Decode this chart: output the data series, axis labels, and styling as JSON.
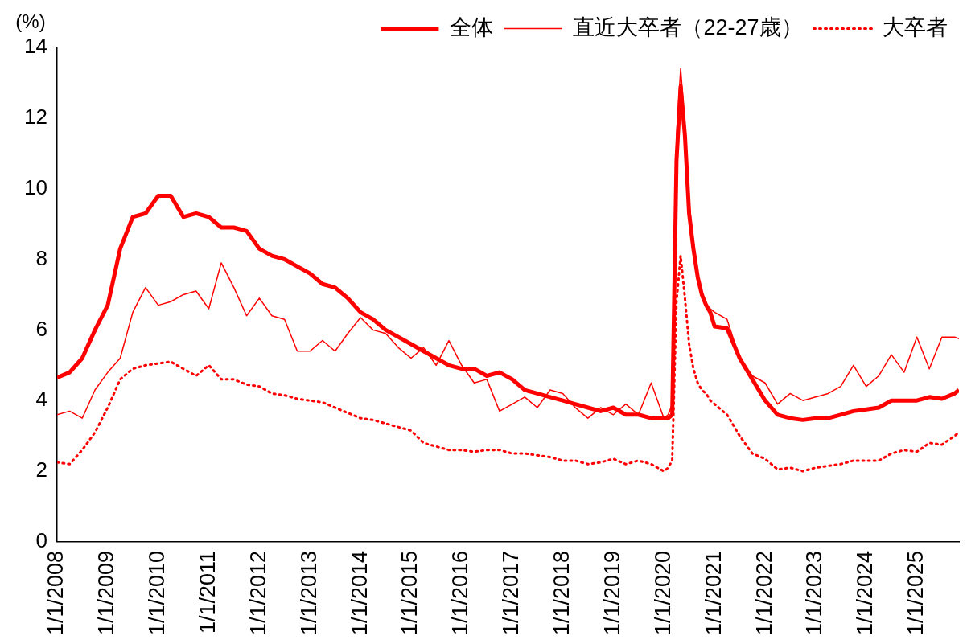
{
  "chart_data": {
    "type": "line",
    "ylabel": "(%)",
    "legend": "top",
    "grid": false,
    "marker": "none",
    "x": [
      "2008-01",
      "2008-04",
      "2008-07",
      "2008-10",
      "2009-01",
      "2009-04",
      "2009-07",
      "2009-10",
      "2010-01",
      "2010-04",
      "2010-07",
      "2010-10",
      "2011-01",
      "2011-04",
      "2011-07",
      "2011-10",
      "2012-01",
      "2012-04",
      "2012-07",
      "2012-10",
      "2013-01",
      "2013-04",
      "2013-07",
      "2013-10",
      "2014-01",
      "2014-04",
      "2014-07",
      "2014-10",
      "2015-01",
      "2015-04",
      "2015-07",
      "2015-10",
      "2016-01",
      "2016-04",
      "2016-07",
      "2016-10",
      "2017-01",
      "2017-04",
      "2017-07",
      "2017-10",
      "2018-01",
      "2018-04",
      "2018-07",
      "2018-10",
      "2019-01",
      "2019-04",
      "2019-07",
      "2019-10",
      "2020-01",
      "2020-02",
      "2020-03",
      "2020-04",
      "2020-05",
      "2020-06",
      "2020-07",
      "2020-08",
      "2020-09",
      "2020-10",
      "2020-11",
      "2020-12",
      "2021-01",
      "2021-04",
      "2021-07",
      "2021-10",
      "2022-01",
      "2022-04",
      "2022-07",
      "2022-10",
      "2023-01",
      "2023-04",
      "2023-07",
      "2023-10",
      "2024-01",
      "2024-04",
      "2024-07",
      "2024-10",
      "2025-01",
      "2025-04",
      "2025-07",
      "2025-10",
      "2025-11"
    ],
    "series": [
      {
        "name": "全体",
        "color": "#ff0000",
        "line_style": "solid",
        "values": [
          4.65,
          4.8,
          5.2,
          6.0,
          6.7,
          8.3,
          9.2,
          9.3,
          9.8,
          9.8,
          9.2,
          9.3,
          9.2,
          8.9,
          8.9,
          8.8,
          8.3,
          8.1,
          8.0,
          7.8,
          7.6,
          7.3,
          7.2,
          6.9,
          6.5,
          6.3,
          6.0,
          5.8,
          5.6,
          5.4,
          5.2,
          5.0,
          4.9,
          4.9,
          4.7,
          4.8,
          4.6,
          4.3,
          4.2,
          4.1,
          4.0,
          3.9,
          3.8,
          3.7,
          3.8,
          3.6,
          3.6,
          3.5,
          3.5,
          3.5,
          3.6,
          10.8,
          12.9,
          11.5,
          9.3,
          8.3,
          7.5,
          7.0,
          6.7,
          6.5,
          6.1,
          6.05,
          5.2,
          4.6,
          4.0,
          3.6,
          3.5,
          3.45,
          3.5,
          3.5,
          3.6,
          3.7,
          3.75,
          3.8,
          4.0,
          4.0,
          4.0,
          4.1,
          4.05,
          4.2,
          4.3
        ]
      },
      {
        "name": "直近大卒者（22-27歳）",
        "color": "#ff0000",
        "line_style": "solid",
        "values": [
          3.6,
          3.7,
          3.5,
          4.3,
          4.8,
          5.2,
          6.5,
          7.2,
          6.7,
          6.8,
          7.0,
          7.1,
          6.6,
          7.9,
          7.2,
          6.4,
          6.9,
          6.4,
          6.3,
          5.4,
          5.4,
          5.7,
          5.4,
          5.9,
          6.35,
          6.0,
          5.9,
          5.5,
          5.2,
          5.5,
          5.0,
          5.7,
          5.0,
          4.5,
          4.6,
          3.7,
          3.9,
          4.1,
          3.8,
          4.3,
          4.2,
          3.8,
          3.5,
          3.8,
          3.6,
          3.9,
          3.6,
          4.5,
          3.5,
          3.6,
          3.9,
          11.5,
          13.4,
          11.8,
          9.6,
          8.5,
          7.6,
          6.9,
          6.7,
          6.6,
          6.5,
          6.3,
          5.2,
          4.7,
          4.5,
          3.9,
          4.2,
          4.0,
          4.1,
          4.2,
          4.4,
          5.0,
          4.4,
          4.7,
          5.3,
          4.8,
          5.8,
          4.9,
          5.8,
          5.8,
          5.75
        ]
      },
      {
        "name": "大卒者",
        "color": "#ff0000",
        "line_style": "dotted",
        "values": [
          2.25,
          2.2,
          2.6,
          3.1,
          3.8,
          4.6,
          4.9,
          5.0,
          5.05,
          5.1,
          4.9,
          4.7,
          5.0,
          4.6,
          4.6,
          4.45,
          4.4,
          4.2,
          4.15,
          4.05,
          4.0,
          3.95,
          3.8,
          3.65,
          3.5,
          3.45,
          3.35,
          3.25,
          3.15,
          2.8,
          2.7,
          2.6,
          2.6,
          2.55,
          2.6,
          2.6,
          2.5,
          2.5,
          2.45,
          2.4,
          2.3,
          2.3,
          2.2,
          2.25,
          2.35,
          2.2,
          2.3,
          2.2,
          2.0,
          2.1,
          2.3,
          6.8,
          8.1,
          6.9,
          5.6,
          4.9,
          4.5,
          4.3,
          4.2,
          4.0,
          3.9,
          3.6,
          3.0,
          2.5,
          2.35,
          2.05,
          2.1,
          2.0,
          2.1,
          2.15,
          2.2,
          2.3,
          2.3,
          2.3,
          2.5,
          2.6,
          2.55,
          2.8,
          2.75,
          3.0,
          3.1
        ]
      }
    ],
    "xlim": [
      "2008-01",
      "2025-11"
    ],
    "xticks": [
      {
        "value": "2008-01",
        "label": "1/1/2008"
      },
      {
        "value": "2009-01",
        "label": "1/1/2009"
      },
      {
        "value": "2010-01",
        "label": "1/1/2010"
      },
      {
        "value": "2011-01",
        "label": "1/1/2011"
      },
      {
        "value": "2012-01",
        "label": "1/1/2012"
      },
      {
        "value": "2013-01",
        "label": "1/1/2013"
      },
      {
        "value": "2014-01",
        "label": "1/1/2014"
      },
      {
        "value": "2015-01",
        "label": "1/1/2015"
      },
      {
        "value": "2016-01",
        "label": "1/1/2016"
      },
      {
        "value": "2017-01",
        "label": "1/1/2017"
      },
      {
        "value": "2018-01",
        "label": "1/1/2018"
      },
      {
        "value": "2019-01",
        "label": "1/1/2019"
      },
      {
        "value": "2020-01",
        "label": "1/1/2020"
      },
      {
        "value": "2021-01",
        "label": "1/1/2021"
      },
      {
        "value": "2022-01",
        "label": "1/1/2022"
      },
      {
        "value": "2023-01",
        "label": "1/1/2023"
      },
      {
        "value": "2024-01",
        "label": "1/1/2024"
      },
      {
        "value": "2025-01",
        "label": "1/1/2025"
      }
    ],
    "ylim": [
      0,
      14
    ],
    "yticks": [
      0,
      2,
      4,
      6,
      8,
      10,
      12,
      14
    ]
  }
}
